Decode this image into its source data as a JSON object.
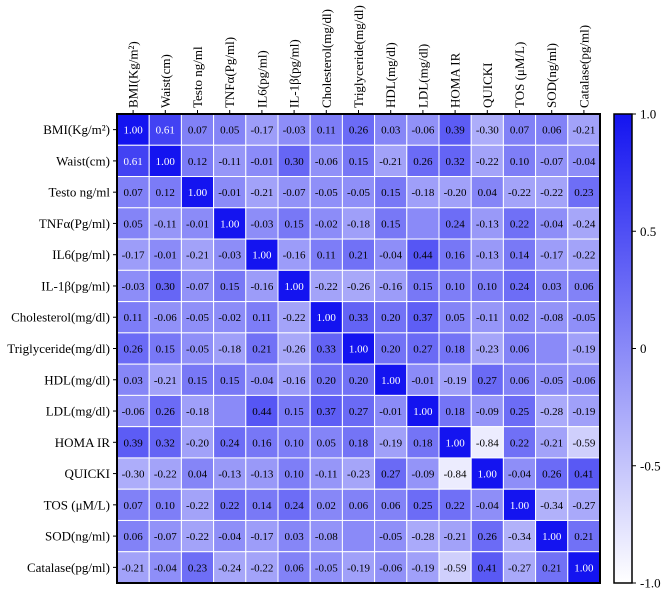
{
  "chart_data": {
    "type": "heatmap",
    "row_labels": [
      "BMI(Kg/m²)",
      "Waist(cm)",
      "Testo ng/ml",
      "TNFα(Pg/ml)",
      "IL6(pg/ml)",
      "IL-1β(pg/ml)",
      "Cholesterol(mg/dl)",
      "Triglyceride(mg/dl)",
      "HDL(mg/dl)",
      "LDL(mg/dl)",
      "HOMA IR",
      "QUICKI",
      "TOS (μM/L)",
      "SOD(ng/ml)",
      "Catalase(pg/ml)"
    ],
    "col_labels": [
      "BMI(Kg/m²)",
      "Waist(cm)",
      "Testo ng/ml",
      "TNFα(Pg/ml)",
      "IL6(pg/ml)",
      "IL-1β(pg/ml)",
      "Cholesterol(mg/dl)",
      "Triglyceride(mg/dl)",
      "HDL(mg/dl)",
      "LDL(mg/dl)",
      "HOMA IR",
      "QUICKI",
      "TOS (μM/L)",
      "SOD(ng/ml)",
      "Catalase(pg/ml)"
    ],
    "values": [
      [
        1.0,
        0.61,
        0.07,
        0.05,
        -0.17,
        -0.03,
        0.11,
        0.26,
        0.03,
        -0.06,
        0.39,
        -0.3,
        0.07,
        0.06,
        -0.21
      ],
      [
        0.61,
        1.0,
        0.12,
        -0.11,
        -0.01,
        0.3,
        -0.06,
        0.15,
        -0.21,
        0.26,
        0.32,
        -0.22,
        0.1,
        -0.07,
        -0.04
      ],
      [
        0.07,
        0.12,
        1.0,
        -0.01,
        -0.21,
        -0.07,
        -0.05,
        -0.05,
        0.15,
        -0.18,
        -0.2,
        0.04,
        -0.22,
        -0.22,
        0.23
      ],
      [
        0.05,
        -0.11,
        -0.01,
        1.0,
        -0.03,
        0.15,
        -0.02,
        -0.18,
        0.15,
        null,
        0.24,
        -0.13,
        0.22,
        -0.04,
        -0.24
      ],
      [
        -0.17,
        -0.01,
        -0.21,
        -0.03,
        1.0,
        -0.16,
        0.11,
        0.21,
        -0.04,
        0.44,
        0.16,
        -0.13,
        0.14,
        -0.17,
        -0.22
      ],
      [
        -0.03,
        0.3,
        -0.07,
        0.15,
        -0.16,
        1.0,
        -0.22,
        -0.26,
        -0.16,
        0.15,
        0.1,
        0.1,
        0.24,
        0.03,
        0.06
      ],
      [
        0.11,
        -0.06,
        -0.05,
        -0.02,
        0.11,
        -0.22,
        1.0,
        0.33,
        0.2,
        0.37,
        0.05,
        -0.11,
        0.02,
        -0.08,
        -0.05
      ],
      [
        0.26,
        0.15,
        -0.05,
        -0.18,
        0.21,
        -0.26,
        0.33,
        1.0,
        0.2,
        0.27,
        0.18,
        -0.23,
        0.06,
        null,
        -0.19
      ],
      [
        0.03,
        -0.21,
        0.15,
        0.15,
        -0.04,
        -0.16,
        0.2,
        0.2,
        1.0,
        -0.01,
        -0.19,
        0.27,
        0.06,
        -0.05,
        -0.06
      ],
      [
        -0.06,
        0.26,
        -0.18,
        null,
        0.44,
        0.15,
        0.37,
        0.27,
        -0.01,
        1.0,
        0.18,
        -0.09,
        0.25,
        -0.28,
        -0.19
      ],
      [
        0.39,
        0.32,
        -0.2,
        0.24,
        0.16,
        0.1,
        0.05,
        0.18,
        -0.19,
        0.18,
        1.0,
        -0.84,
        0.22,
        -0.21,
        -0.59
      ],
      [
        -0.3,
        -0.22,
        0.04,
        -0.13,
        -0.13,
        0.1,
        -0.11,
        -0.23,
        0.27,
        -0.09,
        -0.84,
        1.0,
        -0.04,
        0.26,
        0.41
      ],
      [
        0.07,
        0.1,
        -0.22,
        0.22,
        0.14,
        0.24,
        0.02,
        0.06,
        0.06,
        0.25,
        0.22,
        -0.04,
        1.0,
        -0.34,
        -0.27
      ],
      [
        0.06,
        -0.07,
        -0.22,
        -0.04,
        -0.17,
        0.03,
        -0.08,
        null,
        -0.05,
        -0.28,
        -0.21,
        0.26,
        -0.34,
        1.0,
        0.21
      ],
      [
        -0.21,
        -0.04,
        0.23,
        -0.24,
        -0.22,
        0.06,
        -0.05,
        -0.19,
        -0.06,
        -0.19,
        -0.59,
        0.41,
        -0.27,
        0.21,
        1.0
      ]
    ],
    "range": [
      -1.0,
      1.0
    ],
    "colorscale": {
      "low": "#ffffff",
      "high": "#1414f0"
    },
    "colorbar_ticks": [
      "1.0",
      "0.5",
      "0",
      "-0.5",
      "-1.0"
    ],
    "colorbar_tick_values": [
      1.0,
      0.5,
      0,
      -0.5,
      -1.0
    ],
    "legend_position": "right"
  }
}
